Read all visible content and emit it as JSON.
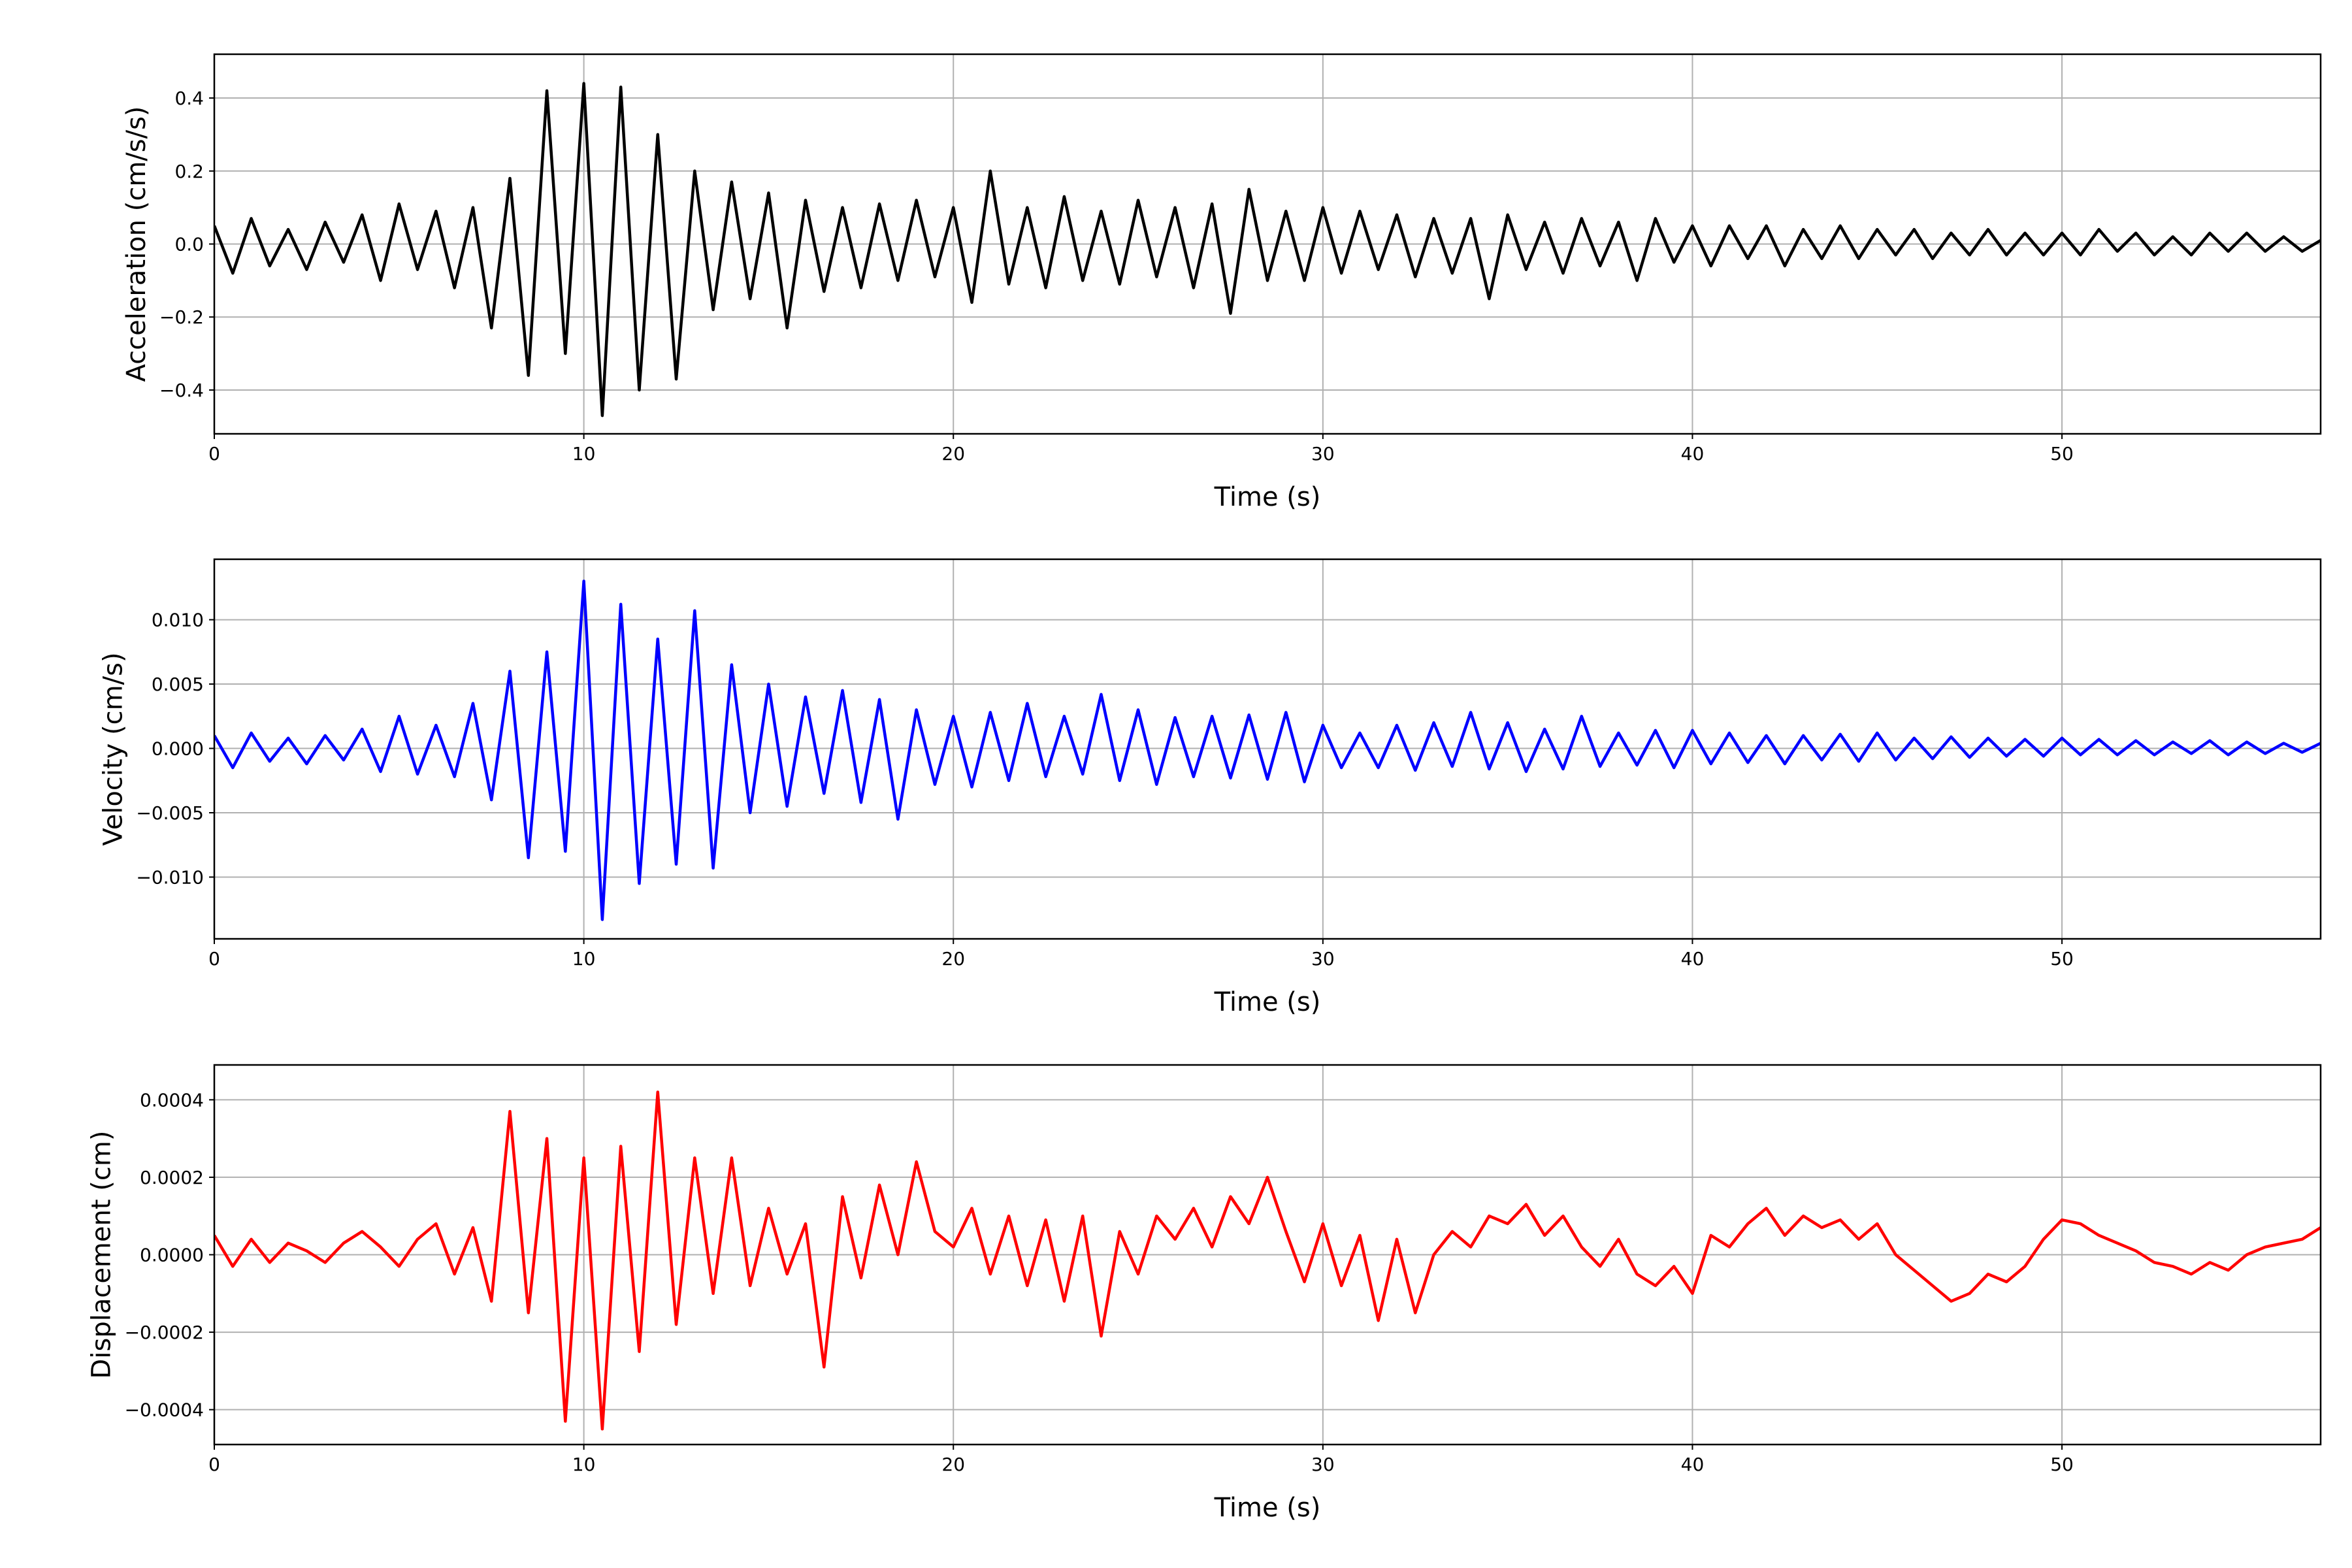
{
  "chart_data": [
    {
      "type": "line",
      "ylabel": "Acceleration (cm/s/s)",
      "xlabel": "Time (s)",
      "color": "#000000",
      "grid": true,
      "xlim": [
        0,
        57
      ],
      "xticks": [
        0,
        10,
        20,
        30,
        40,
        50
      ],
      "ylim": [
        -0.52,
        0.52
      ],
      "yticks": [
        {
          "value": -0.4,
          "label": "−0.4"
        },
        {
          "value": -0.2,
          "label": "−0.2"
        },
        {
          "value": 0,
          "label": "0.0"
        },
        0.2,
        0.4
      ],
      "x": [
        0,
        0.5,
        1,
        1.5,
        2,
        2.5,
        3,
        3.5,
        4,
        4.5,
        5,
        5.5,
        6,
        6.5,
        7,
        7.5,
        8,
        8.5,
        9,
        9.5,
        10,
        10.5,
        11,
        11.5,
        12,
        12.5,
        13,
        13.5,
        14,
        14.5,
        15,
        15.5,
        16,
        16.5,
        17,
        17.5,
        18,
        18.5,
        19,
        19.5,
        20,
        20.5,
        21,
        21.5,
        22,
        22.5,
        23,
        23.5,
        24,
        24.5,
        25,
        25.5,
        26,
        26.5,
        27,
        27.5,
        28,
        28.5,
        29,
        29.5,
        30,
        30.5,
        31,
        31.5,
        32,
        32.5,
        33,
        33.5,
        34,
        34.5,
        35,
        35.5,
        36,
        36.5,
        37,
        37.5,
        38,
        38.5,
        39,
        39.5,
        40,
        40.5,
        41,
        41.5,
        42,
        42.5,
        43,
        43.5,
        44,
        44.5,
        45,
        45.5,
        46,
        46.5,
        47,
        47.5,
        48,
        48.5,
        49,
        49.5,
        50,
        50.5,
        51,
        51.5,
        52,
        52.5,
        53,
        53.5,
        54,
        54.5,
        55,
        55.5,
        56,
        56.5,
        57
      ],
      "values": [
        0.05,
        -0.08,
        0.07,
        -0.06,
        0.04,
        -0.07,
        0.06,
        -0.05,
        0.08,
        -0.1,
        0.11,
        -0.07,
        0.09,
        -0.12,
        0.1,
        -0.23,
        0.18,
        -0.36,
        0.42,
        -0.3,
        0.44,
        -0.47,
        0.43,
        -0.4,
        0.3,
        -0.37,
        0.2,
        -0.18,
        0.17,
        -0.15,
        0.14,
        -0.23,
        0.12,
        -0.13,
        0.1,
        -0.12,
        0.11,
        -0.1,
        0.12,
        -0.09,
        0.1,
        -0.16,
        0.2,
        -0.11,
        0.1,
        -0.12,
        0.13,
        -0.1,
        0.09,
        -0.11,
        0.12,
        -0.09,
        0.1,
        -0.12,
        0.11,
        -0.19,
        0.15,
        -0.1,
        0.09,
        -0.1,
        0.1,
        -0.08,
        0.09,
        -0.07,
        0.08,
        -0.09,
        0.07,
        -0.08,
        0.07,
        -0.15,
        0.08,
        -0.07,
        0.06,
        -0.08,
        0.07,
        -0.06,
        0.06,
        -0.1,
        0.07,
        -0.05,
        0.05,
        -0.06,
        0.05,
        -0.04,
        0.05,
        -0.06,
        0.04,
        -0.04,
        0.05,
        -0.04,
        0.04,
        -0.03,
        0.04,
        -0.04,
        0.03,
        -0.03,
        0.04,
        -0.03,
        0.03,
        -0.03,
        0.03,
        -0.03,
        0.04,
        -0.02,
        0.03,
        -0.03,
        0.02,
        -0.03,
        0.03,
        -0.02,
        0.03,
        -0.02,
        0.02,
        -0.02,
        0.01
      ]
    },
    {
      "type": "line",
      "ylabel": "Velocity (cm/s)",
      "xlabel": "Time (s)",
      "color": "#0000ff",
      "grid": true,
      "xlim": [
        0,
        57
      ],
      "xticks": [
        0,
        10,
        20,
        30,
        40,
        50
      ],
      "ylim": [
        -0.0148,
        0.0147
      ],
      "yticks": [
        {
          "value": -0.01,
          "label": "−0.010"
        },
        {
          "value": -0.005,
          "label": "−0.005"
        },
        {
          "value": 0,
          "label": "0.000"
        },
        0.005,
        {
          "value": 0.01,
          "label": "0.010"
        }
      ],
      "x": [
        0,
        0.5,
        1,
        1.5,
        2,
        2.5,
        3,
        3.5,
        4,
        4.5,
        5,
        5.5,
        6,
        6.5,
        7,
        7.5,
        8,
        8.5,
        9,
        9.5,
        10,
        10.5,
        11,
        11.5,
        12,
        12.5,
        13,
        13.5,
        14,
        14.5,
        15,
        15.5,
        16,
        16.5,
        17,
        17.5,
        18,
        18.5,
        19,
        19.5,
        20,
        20.5,
        21,
        21.5,
        22,
        22.5,
        23,
        23.5,
        24,
        24.5,
        25,
        25.5,
        26,
        26.5,
        27,
        27.5,
        28,
        28.5,
        29,
        29.5,
        30,
        30.5,
        31,
        31.5,
        32,
        32.5,
        33,
        33.5,
        34,
        34.5,
        35,
        35.5,
        36,
        36.5,
        37,
        37.5,
        38,
        38.5,
        39,
        39.5,
        40,
        40.5,
        41,
        41.5,
        42,
        42.5,
        43,
        43.5,
        44,
        44.5,
        45,
        45.5,
        46,
        46.5,
        47,
        47.5,
        48,
        48.5,
        49,
        49.5,
        50,
        50.5,
        51,
        51.5,
        52,
        52.5,
        53,
        53.5,
        54,
        54.5,
        55,
        55.5,
        56,
        56.5,
        57
      ],
      "values": [
        0.001,
        -0.0015,
        0.0012,
        -0.001,
        0.0008,
        -0.0012,
        0.001,
        -0.0009,
        0.0015,
        -0.0018,
        0.0025,
        -0.002,
        0.0018,
        -0.0022,
        0.0035,
        -0.004,
        0.006,
        -0.0085,
        0.0075,
        -0.008,
        0.013,
        -0.0133,
        0.0112,
        -0.0105,
        0.0085,
        -0.009,
        0.0107,
        -0.0093,
        0.0065,
        -0.005,
        0.005,
        -0.0045,
        0.004,
        -0.0035,
        0.0045,
        -0.0042,
        0.0038,
        -0.0055,
        0.003,
        -0.0028,
        0.0025,
        -0.003,
        0.0028,
        -0.0025,
        0.0035,
        -0.0022,
        0.0025,
        -0.002,
        0.0042,
        -0.0025,
        0.003,
        -0.0028,
        0.0024,
        -0.0022,
        0.0025,
        -0.0023,
        0.0026,
        -0.0024,
        0.0028,
        -0.0026,
        0.0018,
        -0.0015,
        0.0012,
        -0.0015,
        0.0018,
        -0.0017,
        0.002,
        -0.0014,
        0.0028,
        -0.0016,
        0.002,
        -0.0018,
        0.0015,
        -0.0016,
        0.0025,
        -0.0014,
        0.0012,
        -0.0013,
        0.0014,
        -0.0015,
        0.0014,
        -0.0012,
        0.0012,
        -0.0011,
        0.001,
        -0.0012,
        0.001,
        -0.0009,
        0.0011,
        -0.001,
        0.0012,
        -0.0009,
        0.0008,
        -0.0008,
        0.0009,
        -0.0007,
        0.0008,
        -0.0006,
        0.0007,
        -0.0006,
        0.0008,
        -0.0005,
        0.0007,
        -0.0005,
        0.0006,
        -0.0005,
        0.0005,
        -0.0004,
        0.0006,
        -0.0005,
        0.0005,
        -0.0004,
        0.0004,
        -0.0003,
        0.0004
      ]
    },
    {
      "type": "line",
      "ylabel": "Displacement (cm)",
      "xlabel": "Time (s)",
      "color": "#ff0000",
      "grid": true,
      "xlim": [
        0,
        57
      ],
      "xticks": [
        0,
        10,
        20,
        30,
        40,
        50
      ],
      "ylim": [
        -0.00049,
        0.00049
      ],
      "yticks": [
        {
          "value": -0.0004,
          "label": "−0.0004"
        },
        {
          "value": -0.0002,
          "label": "−0.0002"
        },
        {
          "value": 0,
          "label": "0.0000"
        },
        0.0002,
        0.0004
      ],
      "x": [
        0,
        0.5,
        1,
        1.5,
        2,
        2.5,
        3,
        3.5,
        4,
        4.5,
        5,
        5.5,
        6,
        6.5,
        7,
        7.5,
        8,
        8.5,
        9,
        9.5,
        10,
        10.5,
        11,
        11.5,
        12,
        12.5,
        13,
        13.5,
        14,
        14.5,
        15,
        15.5,
        16,
        16.5,
        17,
        17.5,
        18,
        18.5,
        19,
        19.5,
        20,
        20.5,
        21,
        21.5,
        22,
        22.5,
        23,
        23.5,
        24,
        24.5,
        25,
        25.5,
        26,
        26.5,
        27,
        27.5,
        28,
        28.5,
        29,
        29.5,
        30,
        30.5,
        31,
        31.5,
        32,
        32.5,
        33,
        33.5,
        34,
        34.5,
        35,
        35.5,
        36,
        36.5,
        37,
        37.5,
        38,
        38.5,
        39,
        39.5,
        40,
        40.5,
        41,
        41.5,
        42,
        42.5,
        43,
        43.5,
        44,
        44.5,
        45,
        45.5,
        46,
        46.5,
        47,
        47.5,
        48,
        48.5,
        49,
        49.5,
        50,
        50.5,
        51,
        51.5,
        52,
        52.5,
        53,
        53.5,
        54,
        54.5,
        55,
        55.5,
        56,
        56.5,
        57
      ],
      "values": [
        5e-05,
        -3e-05,
        4e-05,
        -2e-05,
        3e-05,
        1e-05,
        -2e-05,
        3e-05,
        6e-05,
        2e-05,
        -3e-05,
        4e-05,
        8e-05,
        -5e-05,
        7e-05,
        -0.00012,
        0.00037,
        -0.00015,
        0.0003,
        -0.00043,
        0.00025,
        -0.00045,
        0.00028,
        -0.00025,
        0.00042,
        -0.00018,
        0.00025,
        -0.0001,
        0.00025,
        -8e-05,
        0.00012,
        -5e-05,
        8e-05,
        -0.00029,
        0.00015,
        -6e-05,
        0.00018,
        0,
        0.00024,
        6e-05,
        2e-05,
        0.00012,
        -5e-05,
        0.0001,
        -8e-05,
        9e-05,
        -0.00012,
        0.0001,
        -0.00021,
        6e-05,
        -5e-05,
        0.0001,
        4e-05,
        0.00012,
        2e-05,
        0.00015,
        8e-05,
        0.0002,
        6e-05,
        -7e-05,
        8e-05,
        -8e-05,
        5e-05,
        -0.00017,
        4e-05,
        -0.00015,
        0,
        6e-05,
        2e-05,
        0.0001,
        8e-05,
        0.00013,
        5e-05,
        0.0001,
        2e-05,
        -3e-05,
        4e-05,
        -5e-05,
        -8e-05,
        -3e-05,
        -0.0001,
        5e-05,
        2e-05,
        8e-05,
        0.00012,
        5e-05,
        0.0001,
        7e-05,
        9e-05,
        4e-05,
        8e-05,
        0,
        -4e-05,
        -8e-05,
        -0.00012,
        -0.0001,
        -5e-05,
        -7e-05,
        -3e-05,
        4e-05,
        9e-05,
        8e-05,
        5e-05,
        3e-05,
        1e-05,
        -2e-05,
        -3e-05,
        -5e-05,
        -2e-05,
        -4e-05,
        0,
        2e-05,
        3e-05,
        4e-05,
        7e-05
      ]
    }
  ]
}
